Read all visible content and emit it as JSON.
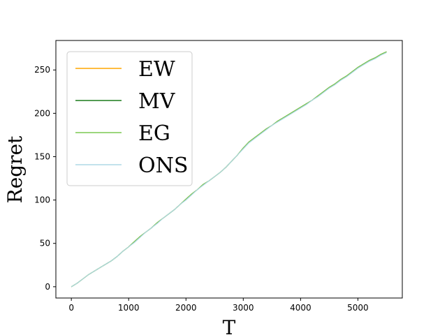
{
  "chart_data": {
    "type": "line",
    "xlabel": "T",
    "ylabel": "Regret",
    "xlim": [
      -270,
      5775
    ],
    "ylim": [
      -13,
      284
    ],
    "xticks": [
      0,
      1000,
      2000,
      3000,
      4000,
      5000
    ],
    "yticks": [
      0,
      50,
      100,
      150,
      200,
      250
    ],
    "grid": false,
    "legend_position": "top-left",
    "x": [
      0,
      100,
      200,
      300,
      400,
      500,
      600,
      700,
      800,
      900,
      1000,
      1100,
      1200,
      1300,
      1400,
      1500,
      1600,
      1700,
      1800,
      1900,
      2000,
      2100,
      2200,
      2300,
      2400,
      2500,
      2600,
      2700,
      2800,
      2900,
      3000,
      3100,
      3200,
      3300,
      3400,
      3500,
      3600,
      3700,
      3800,
      3900,
      4000,
      4100,
      4200,
      4300,
      4400,
      4500,
      4600,
      4700,
      4800,
      4900,
      5000,
      5100,
      5200,
      5300,
      5400,
      5500
    ],
    "series": [
      {
        "name": "EW",
        "color": "#FFA500",
        "values": [
          0,
          4,
          9,
          14,
          18,
          22,
          26,
          30,
          35,
          41,
          46,
          52,
          58,
          63,
          68,
          74,
          79,
          84,
          89,
          95,
          101,
          107,
          112,
          118,
          122,
          127,
          132,
          138,
          145,
          152,
          160,
          167,
          172,
          177,
          182,
          186,
          191,
          195,
          199,
          203,
          207,
          211,
          215,
          220,
          225,
          230,
          234,
          239,
          243,
          248,
          253,
          257,
          261,
          264,
          268,
          271
        ]
      },
      {
        "name": "MV",
        "color": "#1A7A1A",
        "values": [
          0,
          4,
          9,
          14,
          18,
          22,
          26,
          30,
          35,
          41,
          46,
          52,
          58,
          63,
          68,
          74,
          79,
          84,
          89,
          95,
          101,
          107,
          112,
          118,
          122,
          127,
          132,
          138,
          145,
          152,
          160,
          167,
          172,
          177,
          182,
          186,
          191,
          195,
          199,
          203,
          207,
          211,
          215,
          220,
          225,
          230,
          234,
          239,
          243,
          248,
          253,
          257,
          261,
          264,
          268,
          271
        ]
      },
      {
        "name": "EG",
        "color": "#7CC850",
        "values": [
          0,
          4,
          9,
          14,
          18,
          22,
          26,
          30,
          35,
          41,
          46,
          52,
          58,
          63,
          68,
          74,
          79,
          84,
          89,
          95,
          101,
          107,
          112,
          118,
          122,
          127,
          132,
          138,
          145,
          152,
          160,
          167,
          172,
          177,
          182,
          186,
          191,
          195,
          199,
          203,
          207,
          211,
          215,
          220,
          225,
          230,
          234,
          239,
          243,
          248,
          253,
          257,
          261,
          264,
          268,
          271
        ]
      },
      {
        "name": "ONS",
        "color": "#ADD8E6",
        "values": [
          0,
          4,
          9,
          14,
          18,
          22,
          26,
          30,
          35,
          41,
          46,
          51,
          57,
          63,
          68,
          73,
          79,
          84,
          89,
          95,
          100,
          106,
          112,
          117,
          122,
          127,
          132,
          138,
          145,
          152,
          159,
          166,
          171,
          176,
          181,
          186,
          190,
          194,
          198,
          202,
          206,
          210,
          215,
          219,
          224,
          229,
          233,
          238,
          242,
          247,
          252,
          256,
          260,
          263,
          267,
          270
        ]
      }
    ]
  }
}
